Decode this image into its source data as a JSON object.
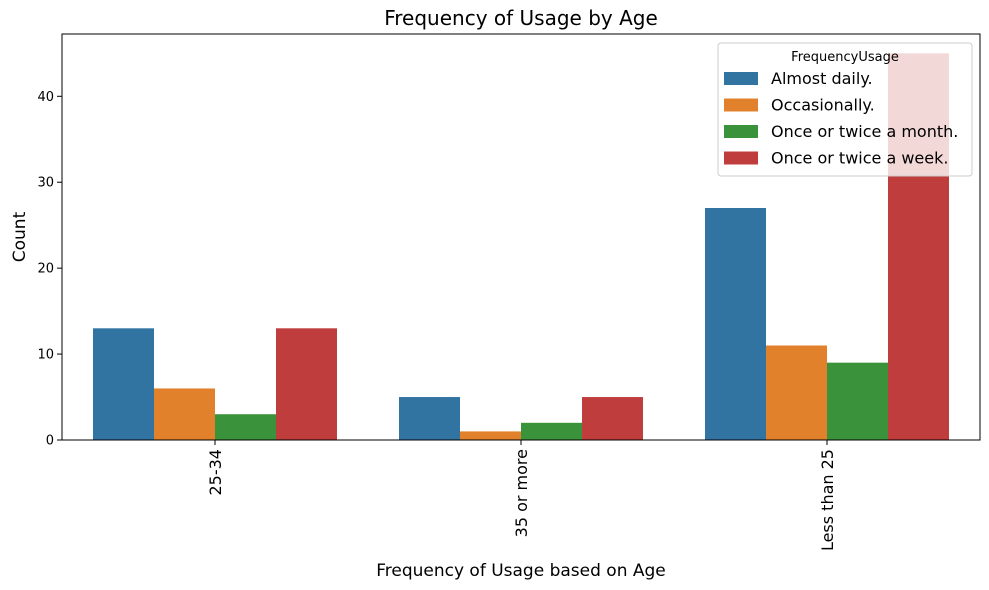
{
  "chart_data": {
    "type": "bar",
    "title": "Frequency of Usage by Age",
    "xlabel": "Frequency of Usage based on Age",
    "ylabel": "Count",
    "categories": [
      "25-34",
      "35 or more",
      "Less than 25"
    ],
    "ylim": [
      0,
      47.25
    ],
    "yticks": [
      0,
      10,
      20,
      30,
      40
    ],
    "grid": false,
    "legend": {
      "title": "FrequencyUsage",
      "position": "top-right"
    },
    "series": [
      {
        "name": "Almost daily.",
        "color": "#3274a1",
        "values": [
          13,
          5,
          27
        ]
      },
      {
        "name": "Occasionally.",
        "color": "#e1812c",
        "values": [
          6,
          1,
          11
        ]
      },
      {
        "name": "Once or twice a month.",
        "color": "#3a923a",
        "values": [
          3,
          2,
          9
        ]
      },
      {
        "name": "Once or twice a week.",
        "color": "#c03d3e",
        "values": [
          13,
          5,
          45
        ]
      }
    ]
  }
}
